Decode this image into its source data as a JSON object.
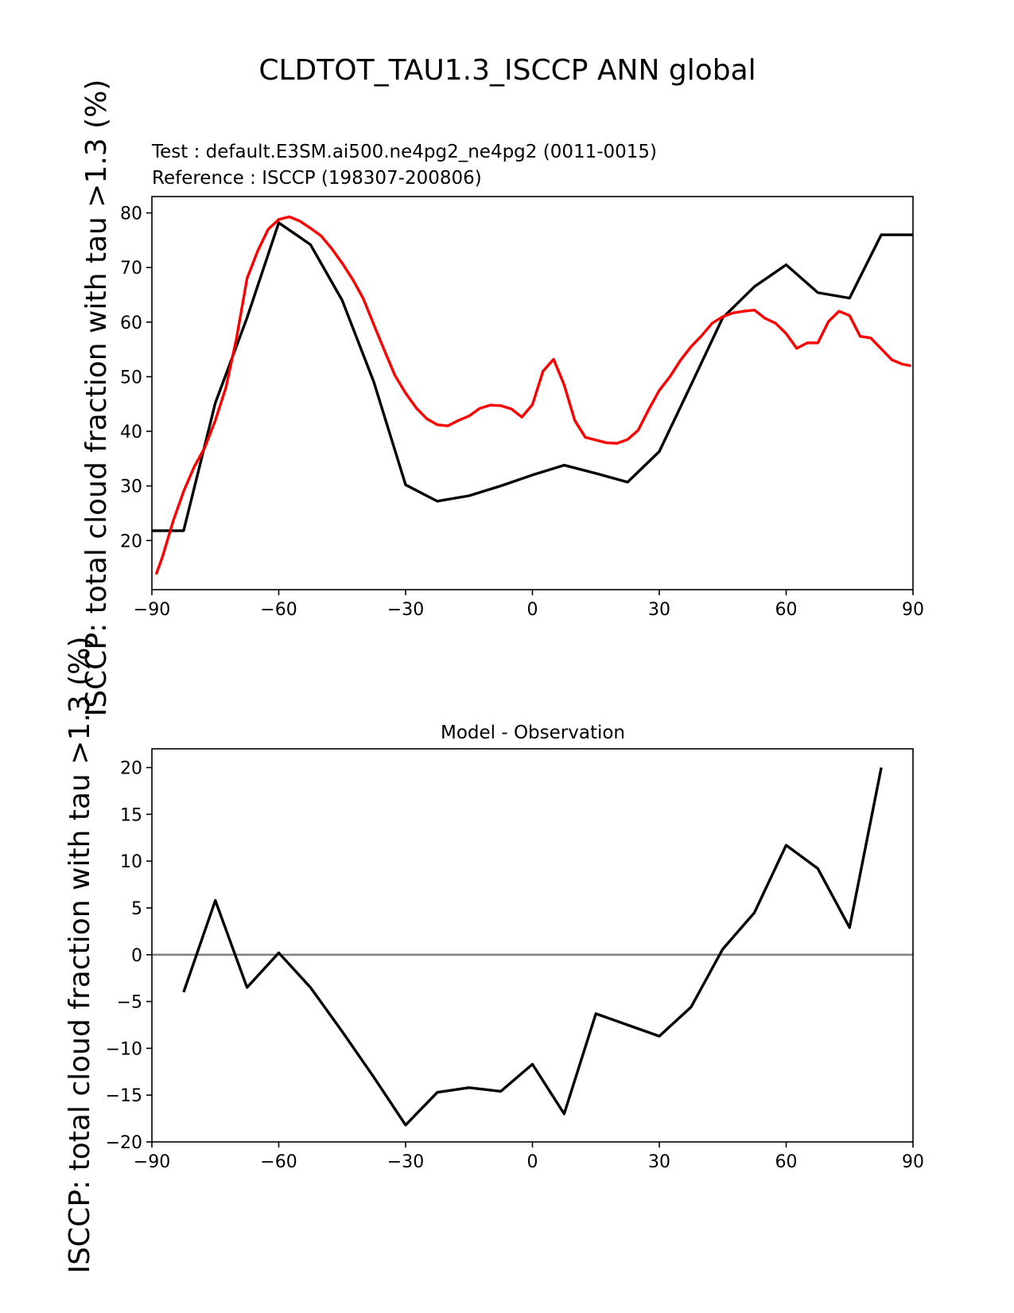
{
  "figure": {
    "title": "CLDTOT_TAU1.3_ISCCP ANN global",
    "test_label": "Test : default.E3SM.ai500.ne4pg2_ne4pg2 (0011-0015)",
    "reference_label": "Reference : ISCCP (198307-200806)",
    "diff_title": "Model - Observation",
    "ylabel": "ISCCP: total cloud fraction with tau >1.3 (%)"
  },
  "colors": {
    "test": "#000000",
    "reference": "#ff0000",
    "zero_line": "#808080",
    "axes": "#000000"
  },
  "chart_data": [
    {
      "type": "line",
      "title": "CLDTOT_TAU1.3_ISCCP ANN global",
      "xlabel": "",
      "ylabel": "ISCCP: total cloud fraction with tau >1.3 (%)",
      "xlim": [
        -90,
        90
      ],
      "ylim": [
        11,
        83
      ],
      "xticks": [
        -90,
        -60,
        -30,
        0,
        30,
        60,
        90
      ],
      "xtick_labels": [
        "−90",
        "−60",
        "−30",
        "0",
        "30",
        "60",
        "90"
      ],
      "yticks": [
        20,
        30,
        40,
        50,
        60,
        70,
        80
      ],
      "ytick_labels": [
        "20",
        "30",
        "40",
        "50",
        "60",
        "70",
        "80"
      ],
      "series": [
        {
          "name": "Test : default.E3SM.ai500.ne4pg2_ne4pg2 (0011-0015)",
          "color": "#000000",
          "x": [
            -90,
            -82.5,
            -75,
            -67.5,
            -60,
            -52.5,
            -45,
            -37.5,
            -30,
            -22.5,
            -15,
            -7.5,
            0,
            7.5,
            15,
            22.5,
            30,
            37.5,
            45,
            52.5,
            60,
            67.5,
            75,
            82.5,
            90
          ],
          "y": [
            21.8,
            21.8,
            45.2,
            60.8,
            78.2,
            74.2,
            64.0,
            49.0,
            30.2,
            27.2,
            28.2,
            30.0,
            32.0,
            33.8,
            32.3,
            30.7,
            36.3,
            48.5,
            60.8,
            66.5,
            70.5,
            65.4,
            64.4,
            76.0,
            76.0
          ]
        },
        {
          "name": "Reference : ISCCP (198307-200806)",
          "color": "#ff0000",
          "x": [
            -89,
            -87.5,
            -85,
            -82.5,
            -80,
            -77.5,
            -75,
            -72.5,
            -70,
            -67.5,
            -65,
            -62.5,
            -60,
            -57.5,
            -55,
            -52.5,
            -50,
            -47.5,
            -45,
            -42.5,
            -40,
            -37.5,
            -35,
            -32.5,
            -30,
            -27.5,
            -25,
            -22.5,
            -20,
            -17.5,
            -15,
            -12.5,
            -10,
            -7.5,
            -5,
            -2.5,
            0,
            2.5,
            5,
            7.5,
            10,
            12.5,
            15,
            17.5,
            20,
            22.5,
            25,
            27.5,
            30,
            32.5,
            35,
            37.5,
            40,
            42.5,
            45,
            47.5,
            50,
            52.5,
            55,
            57.5,
            60,
            62.5,
            65,
            67.5,
            70,
            72.5,
            75,
            77.5,
            80,
            82.5,
            85,
            87.5,
            89.5
          ],
          "y": [
            13.8,
            17.0,
            23.5,
            29.0,
            33.5,
            37.0,
            42.0,
            48.0,
            57.0,
            68.0,
            73.0,
            77.0,
            78.8,
            79.3,
            78.5,
            77.2,
            75.8,
            73.5,
            70.8,
            67.8,
            64.3,
            59.5,
            54.8,
            50.2,
            47.0,
            44.3,
            42.3,
            41.2,
            41.0,
            42.0,
            42.8,
            44.2,
            44.8,
            44.7,
            44.1,
            42.6,
            44.9,
            51.0,
            53.2,
            48.5,
            42.0,
            38.9,
            38.4,
            37.9,
            37.8,
            38.5,
            40.2,
            44.0,
            47.5,
            50.0,
            53.0,
            55.5,
            57.5,
            59.8,
            61.0,
            61.7,
            62.0,
            62.2,
            60.7,
            59.8,
            57.9,
            55.2,
            56.2,
            56.2,
            60.1,
            62.0,
            61.2,
            57.4,
            57.1,
            55.1,
            53.1,
            52.3,
            52.0
          ]
        }
      ]
    },
    {
      "type": "line",
      "title": "Model - Observation",
      "xlabel": "",
      "ylabel": "ISCCP: total cloud fraction with tau >1.3 (%)",
      "xlim": [
        -90,
        90
      ],
      "ylim": [
        -20,
        22
      ],
      "xticks": [
        -90,
        -60,
        -30,
        0,
        30,
        60,
        90
      ],
      "xtick_labels": [
        "−90",
        "−60",
        "−30",
        "0",
        "30",
        "60",
        "90"
      ],
      "yticks": [
        -20,
        -15,
        -10,
        -5,
        0,
        5,
        10,
        15,
        20
      ],
      "ytick_labels": [
        "−20",
        "−15",
        "−10",
        "−5",
        "0",
        "5",
        "10",
        "15",
        "20"
      ],
      "reference_line_y": 0,
      "series": [
        {
          "name": "Model - Observation",
          "color": "#000000",
          "x": [
            -82.5,
            -75,
            -67.5,
            -60,
            -52.5,
            -45,
            -37.5,
            -30,
            -22.5,
            -15,
            -7.5,
            0,
            7.5,
            15,
            22.5,
            30,
            37.5,
            45,
            52.5,
            60,
            67.5,
            75,
            82.5
          ],
          "y": [
            -4.0,
            5.8,
            -3.5,
            0.2,
            -3.5,
            -8.2,
            -13.1,
            -18.2,
            -14.7,
            -14.2,
            -14.6,
            -11.7,
            -17.0,
            -6.3,
            -7.5,
            -8.7,
            -5.6,
            0.6,
            4.5,
            11.7,
            9.2,
            2.9,
            20.0
          ]
        }
      ]
    }
  ]
}
